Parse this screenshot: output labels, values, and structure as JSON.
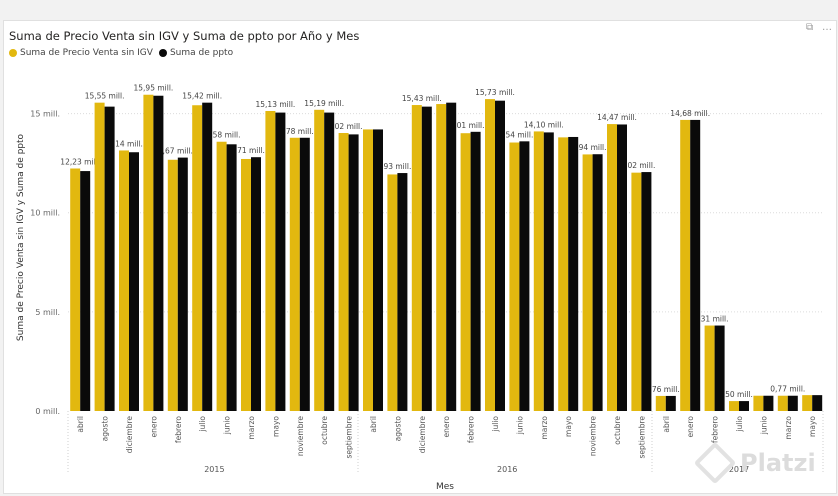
{
  "visual_header": {
    "focus_icon": "⧉",
    "more_icon": "…"
  },
  "chart_data": {
    "type": "bar",
    "title": "Suma de Precio Venta sin IGV y Suma de ppto por Año y Mes",
    "xlabel": "Mes",
    "ylabel": "Suma de Precio Venta sin IGV y Suma de ppto",
    "ylim": [
      0,
      17.5
    ],
    "yticks": [
      {
        "value": 0,
        "label": "0 mill."
      },
      {
        "value": 5,
        "label": "5 mill."
      },
      {
        "value": 10,
        "label": "10 mill."
      },
      {
        "value": 15,
        "label": "15 mill."
      }
    ],
    "colors": {
      "venta": "#e2b80f",
      "ppto": "#0a0a0a"
    },
    "legend": [
      {
        "name": "Suma de Precio Venta sin IGV",
        "color": "#e2b80f"
      },
      {
        "name": "Suma de ppto",
        "color": "#0a0a0a"
      }
    ],
    "groups": [
      {
        "year": "2015",
        "months": [
          {
            "month": "abril",
            "venta": 12.23,
            "ppto": 12.1,
            "label": "12,23 mill."
          },
          {
            "month": "agosto",
            "venta": 15.55,
            "ppto": 15.35,
            "label": "15,55 mill."
          },
          {
            "month": "diciembre",
            "venta": 13.14,
            "ppto": 13.05,
            "label": "14 mill."
          },
          {
            "month": "enero",
            "venta": 15.95,
            "ppto": 15.9,
            "label": "15,95 mill."
          },
          {
            "month": "febrero",
            "venta": 12.67,
            "ppto": 12.78,
            "label": ",67 mill."
          },
          {
            "month": "julio",
            "venta": 15.42,
            "ppto": 15.55,
            "label": "15,42 mill."
          },
          {
            "month": "junio",
            "venta": 13.58,
            "ppto": 13.45,
            "label": "58 mill."
          },
          {
            "month": "marzo",
            "venta": 12.71,
            "ppto": 12.8,
            "label": "71 mill."
          },
          {
            "month": "mayo",
            "venta": 15.13,
            "ppto": 15.05,
            "label": "15,13 mill."
          },
          {
            "month": "noviembre",
            "venta": 13.78,
            "ppto": 13.78,
            "label": "78 mill."
          },
          {
            "month": "octubre",
            "venta": 15.19,
            "ppto": 15.05,
            "label": "15,19 mill."
          },
          {
            "month": "septiembre",
            "venta": 14.02,
            "ppto": 13.95,
            "label": "02 mill."
          }
        ]
      },
      {
        "year": "2016",
        "months": [
          {
            "month": "abril",
            "venta": 14.2,
            "ppto": 14.2,
            "label": ""
          },
          {
            "month": "agosto",
            "venta": 11.93,
            "ppto": 12.0,
            "label": "93 mill."
          },
          {
            "month": "diciembre",
            "venta": 15.43,
            "ppto": 15.35,
            "label": "15,43 mill."
          },
          {
            "month": "enero",
            "venta": 15.48,
            "ppto": 15.55,
            "label": ""
          },
          {
            "month": "febrero",
            "venta": 14.01,
            "ppto": 14.08,
            "label": "01 mill."
          },
          {
            "month": "julio",
            "venta": 15.73,
            "ppto": 15.65,
            "label": "15,73 mill."
          },
          {
            "month": "junio",
            "venta": 13.54,
            "ppto": 13.6,
            "label": "54 mill."
          },
          {
            "month": "marzo",
            "venta": 14.1,
            "ppto": 14.05,
            "label": "14,10 mill."
          },
          {
            "month": "mayo",
            "venta": 13.8,
            "ppto": 13.82,
            "label": ""
          },
          {
            "month": "noviembre",
            "venta": 12.94,
            "ppto": 12.95,
            "label": "94 mill."
          },
          {
            "month": "octubre",
            "venta": 14.47,
            "ppto": 14.45,
            "label": "14,47 mill."
          },
          {
            "month": "septiembre",
            "venta": 12.02,
            "ppto": 12.05,
            "label": "02 mill."
          }
        ]
      },
      {
        "year": "2017",
        "months": [
          {
            "month": "abril",
            "venta": 0.76,
            "ppto": 0.76,
            "label": "76 mill."
          },
          {
            "month": "enero",
            "venta": 14.68,
            "ppto": 14.68,
            "label": "14,68 mill."
          },
          {
            "month": "febrero",
            "venta": 4.31,
            "ppto": 4.31,
            "label": "31 mill."
          },
          {
            "month": "julio",
            "venta": 0.5,
            "ppto": 0.5,
            "label": "50 mill."
          },
          {
            "month": "junio",
            "venta": 0.77,
            "ppto": 0.77,
            "label": ""
          },
          {
            "month": "marzo",
            "venta": 0.77,
            "ppto": 0.77,
            "label": "0,77 mill."
          },
          {
            "month": "mayo",
            "venta": 0.8,
            "ppto": 0.8,
            "label": ""
          }
        ]
      }
    ]
  },
  "watermark": {
    "text": "Platzi"
  }
}
